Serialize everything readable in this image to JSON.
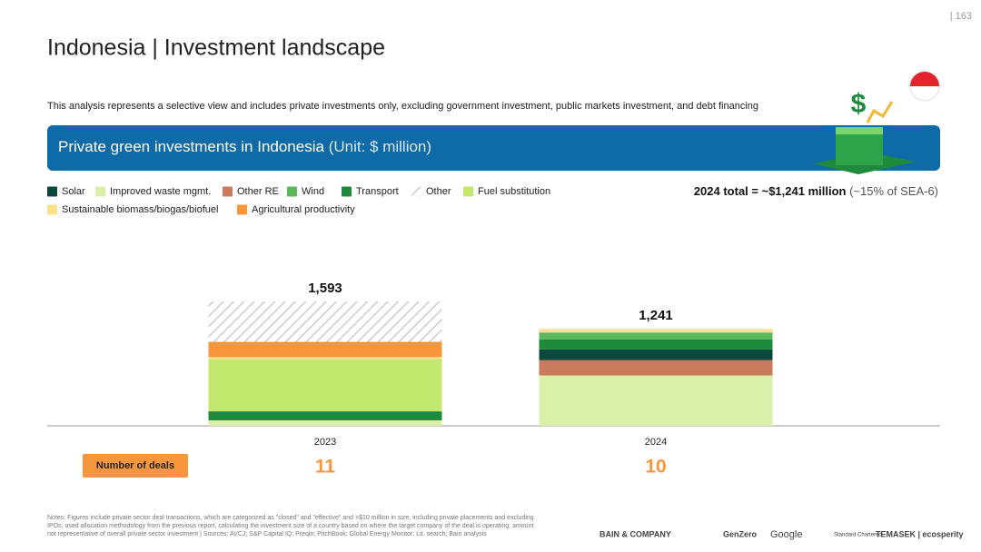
{
  "page_number": "| 163",
  "title": "Indonesia | Investment landscape",
  "subtitle": "This analysis represents a selective view and includes private investments only, excluding government investment, public markets investment, and debt financing",
  "banner": {
    "title": "Private green investments in Indonesia",
    "unit": "(Unit: $ million)"
  },
  "total_note": {
    "main": "2024 total = ~$1,241 million",
    "aside": "(~15% of SEA-6)"
  },
  "chart_data": {
    "type": "stacked_bar",
    "categories": [
      "2023",
      "2024"
    ],
    "series": [
      {
        "name": "Solar",
        "color": "#0b4a3a",
        "values": [
          0,
          140
        ]
      },
      {
        "name": "Improved waste mgmt.",
        "color": "#d8f0a8",
        "values": [
          70,
          645
        ]
      },
      {
        "name": "Other RE",
        "color": "#c97b5c",
        "values": [
          0,
          195
        ]
      },
      {
        "name": "Wind",
        "color": "#5cb85c",
        "values": [
          0,
          90
        ]
      },
      {
        "name": "Transport",
        "color": "#1e8a3c",
        "values": [
          115,
          125
        ]
      },
      {
        "name": "Other",
        "color": "#cccccc",
        "pattern": "hatch",
        "values": [
          518,
          0
        ]
      },
      {
        "name": "Fuel substitution",
        "color": "#c3e86e",
        "values": [
          670,
          0
        ]
      },
      {
        "name": "Sustainable biomass/biogas/biofuel",
        "color": "#fde08a",
        "values": [
          25,
          46
        ]
      },
      {
        "name": "Agricultural productivity",
        "color": "#f7963a",
        "values": [
          195,
          0
        ]
      }
    ],
    "totals": {
      "values": [
        1593,
        1241
      ],
      "value_labels": [
        "1,593",
        "1,241"
      ]
    }
  },
  "deals": {
    "label": "Number of deals",
    "values": [
      11,
      10
    ]
  },
  "notes": [
    "Notes: Figures include private sector deal transactions, which are categorized as \"closed\" and \"effective\" and >$10 million in size, including private placements and excluding",
    "IPOs; used allocation methodology from the previous report, calculating the investment size of a country based on where the target company of the deal is operating; amount",
    "not representative of overall private sector investment | Sources: AVCJ; S&P Capital IQ; Preqin; PitchBook; Global Energy Monitor; Lit. search; Bain analysis"
  ],
  "logos": [
    "BAIN & COMPANY",
    "GenZero",
    "Google",
    "Standard Chartered",
    "TEMASEK | ecosperity"
  ]
}
